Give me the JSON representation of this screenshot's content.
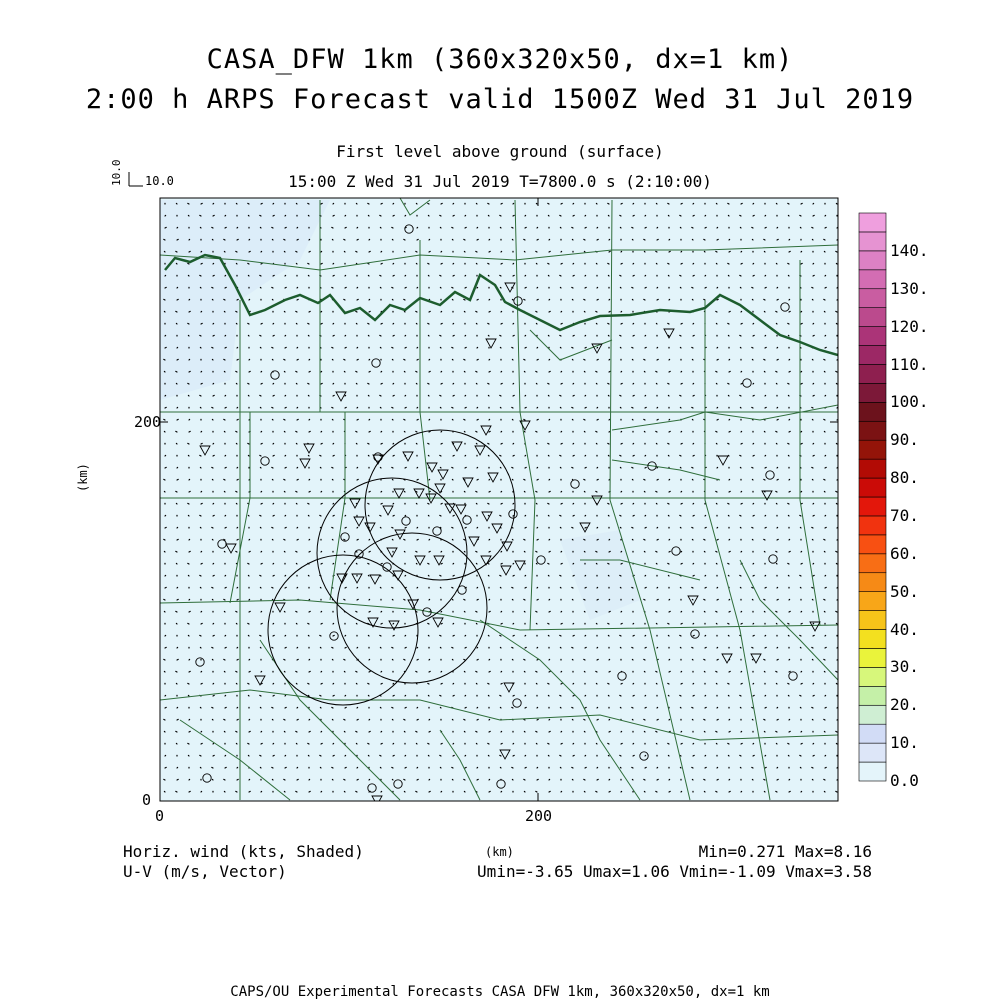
{
  "title": {
    "line1": "CASA_DFW 1km (360x320x50, dx=1 km)",
    "line2": "2:00 h ARPS Forecast valid 1500Z Wed 31 Jul 2019"
  },
  "subtitle": {
    "line1": "First level above ground (surface)",
    "line2": "15:00 Z Wed 31 Jul 2019    T=7800.0 s (2:10:00)"
  },
  "reference_vector": {
    "value_vertical": "10.0",
    "value_horizontal": "10.0"
  },
  "axes": {
    "x_ticks": [
      "0",
      "200"
    ],
    "y_ticks": [
      "0",
      "200"
    ],
    "x_label": "(km)",
    "y_label": "(km)",
    "x_range_km": [
      0,
      360
    ],
    "y_range_km": [
      0,
      320
    ]
  },
  "colorbar": {
    "labels": [
      "0.0",
      "10.",
      "20.",
      "30.",
      "40.",
      "50.",
      "60.",
      "70.",
      "80.",
      "90.",
      "100.",
      "110.",
      "120.",
      "130.",
      "140."
    ],
    "colors": [
      "#e4f4fa",
      "#dde6f8",
      "#d2dcf6",
      "#cfeed3",
      "#c5f0a8",
      "#d7f77b",
      "#eaf33b",
      "#f3e01f",
      "#f7c419",
      "#f8a618",
      "#f68a16",
      "#f86e15",
      "#f85012",
      "#f1330f",
      "#e3170b",
      "#cb0b07",
      "#b20b05",
      "#941409",
      "#7b1213",
      "#6c121c",
      "#7c1838",
      "#8e1f4f",
      "#9c2865",
      "#ab3478",
      "#bb4a8d",
      "#c95da1",
      "#d36db3",
      "#dd81c4",
      "#e693d2",
      "#ef9fde"
    ]
  },
  "map_overlays": {
    "state_border": "Red River (Oklahoma–Texas border)",
    "county_lines": true,
    "radar_range_rings": 4,
    "station_markers": [
      "circle-marker",
      "triangle-marker"
    ],
    "wind_vectors": true
  },
  "bottom_left": {
    "line1": "Horiz. wind (kts, Shaded)",
    "line2": "U-V (m/s, Vector)"
  },
  "bottom_center": "(km)",
  "bottom_right": {
    "line1": "Min=0.271 Max=8.16",
    "line2": "Umin=-3.65 Umax=1.06 Vmin=-1.09 Vmax=3.58"
  },
  "footer": "CAPS/OU Experimental Forecasts  CASA DFW 1km, 360x320x50, dx=1 km"
}
